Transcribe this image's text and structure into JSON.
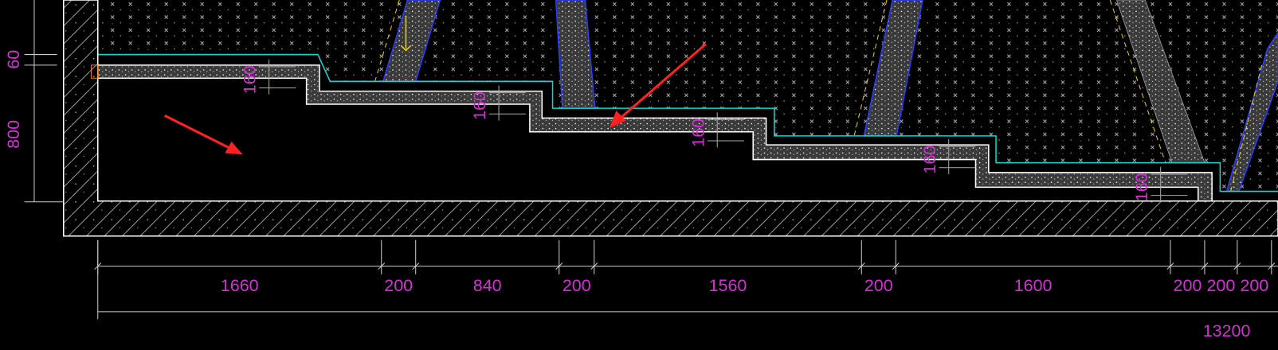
{
  "dimensions": {
    "vertical": [
      "60",
      "800"
    ],
    "steps": [
      "160",
      "160",
      "160",
      "160",
      "160"
    ],
    "horizontal": [
      "1660",
      "200",
      "840",
      "200",
      "1560",
      "200",
      "1600",
      "200",
      "200",
      "200"
    ],
    "total": "13200"
  }
}
